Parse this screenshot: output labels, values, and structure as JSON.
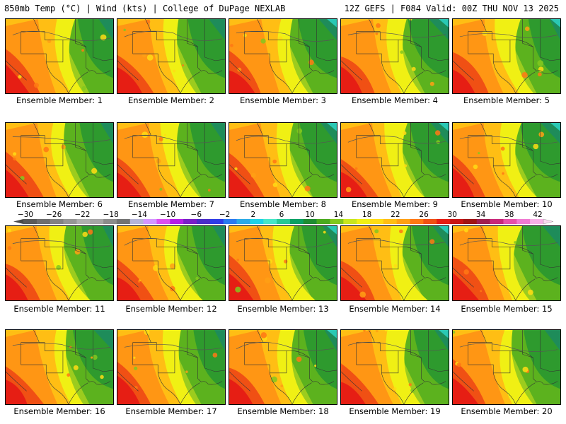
{
  "header": {
    "left": "850mb Temp (°C) | Wind (kts) | College of DuPage NEXLAB",
    "right": "12Z GEFS | F084 Valid: 00Z THU NOV 13 2025"
  },
  "panels": [
    {
      "member": 1,
      "label": "Ensemble Member: 1"
    },
    {
      "member": 2,
      "label": "Ensemble Member: 2"
    },
    {
      "member": 3,
      "label": "Ensemble Member: 3"
    },
    {
      "member": 4,
      "label": "Ensemble Member: 4"
    },
    {
      "member": 5,
      "label": "Ensemble Member: 5"
    },
    {
      "member": 6,
      "label": "Ensemble Member: 6"
    },
    {
      "member": 7,
      "label": "Ensemble Member: 7"
    },
    {
      "member": 8,
      "label": "Ensemble Member: 8"
    },
    {
      "member": 9,
      "label": "Ensemble Member: 9"
    },
    {
      "member": 10,
      "label": "Ensemble Member: 10"
    },
    {
      "member": 11,
      "label": "Ensemble Member: 11"
    },
    {
      "member": 12,
      "label": "Ensemble Member: 12"
    },
    {
      "member": 13,
      "label": "Ensemble Member: 13"
    },
    {
      "member": 14,
      "label": "Ensemble Member: 14"
    },
    {
      "member": 15,
      "label": "Ensemble Member: 15"
    },
    {
      "member": 16,
      "label": "Ensemble Member: 16"
    },
    {
      "member": 17,
      "label": "Ensemble Member: 17"
    },
    {
      "member": 18,
      "label": "Ensemble Member: 18"
    },
    {
      "member": 19,
      "label": "Ensemble Member: 19"
    },
    {
      "member": 20,
      "label": "Ensemble Member: 20"
    }
  ],
  "colorbar": {
    "unit": "°C",
    "tick_labels": [
      "−30",
      "−26",
      "−22",
      "−18",
      "−14",
      "−10",
      "−6",
      "−2",
      "2",
      "6",
      "10",
      "14",
      "18",
      "22",
      "26",
      "30",
      "34",
      "38",
      "42"
    ],
    "colors": [
      "#5a5a5a",
      "#6e6e6e",
      "#828282",
      "#969696",
      "#b0b0b0",
      "#a6a6a6",
      "#8c8c8c",
      "#737373",
      "#b5b5d8",
      "#d496ff",
      "#dc50f0",
      "#b41ee6",
      "#7a1ec8",
      "#4a2cc8",
      "#2e3ce6",
      "#2a7af0",
      "#2aaae6",
      "#1ed2e6",
      "#46e6c8",
      "#26c896",
      "#0aa064",
      "#1e8c32",
      "#4aaa1e",
      "#82c81e",
      "#c8e61e",
      "#f0f014",
      "#ffdc14",
      "#ffbe14",
      "#ffa014",
      "#ff7814",
      "#f05014",
      "#e61e14",
      "#c81414",
      "#a01414",
      "#a01e50",
      "#c8287a",
      "#e650aa",
      "#f07ad2",
      "#f8b0e6"
    ]
  }
}
